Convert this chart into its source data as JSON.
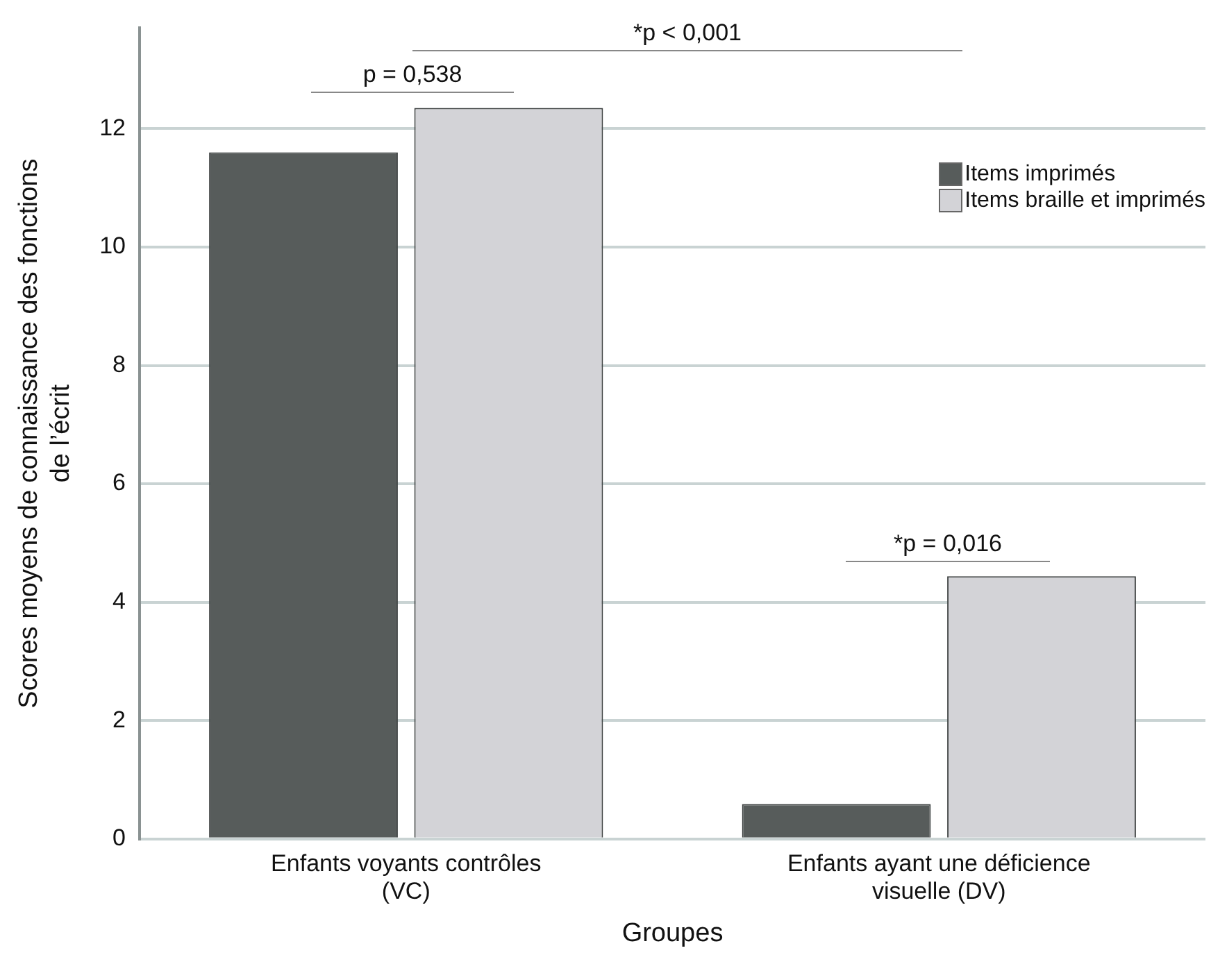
{
  "chart_data": {
    "type": "bar",
    "xlabel": "Groupes",
    "ylabel": "Scores moyens de connaissance des fonctions\nde l’écrit",
    "categories": [
      "Enfants voyants contrôles\n(VC)",
      "Enfants ayant une déficience\nvisuelle (DV)"
    ],
    "series": [
      {
        "name": "Items imprimés",
        "color": "#575c5b",
        "values": [
          11.6,
          0.59
        ]
      },
      {
        "name": "Items braille et imprimés",
        "color": "#d3d3d7",
        "values": [
          12.35,
          4.44
        ]
      }
    ],
    "ylim": [
      0,
      13.7
    ],
    "yticks": [
      0,
      2,
      4,
      6,
      8,
      10,
      12
    ],
    "grid": "y",
    "legend": "top right",
    "annotations": [
      "p = 0,538",
      "*p < 0,001",
      "*p = 0,016"
    ]
  }
}
